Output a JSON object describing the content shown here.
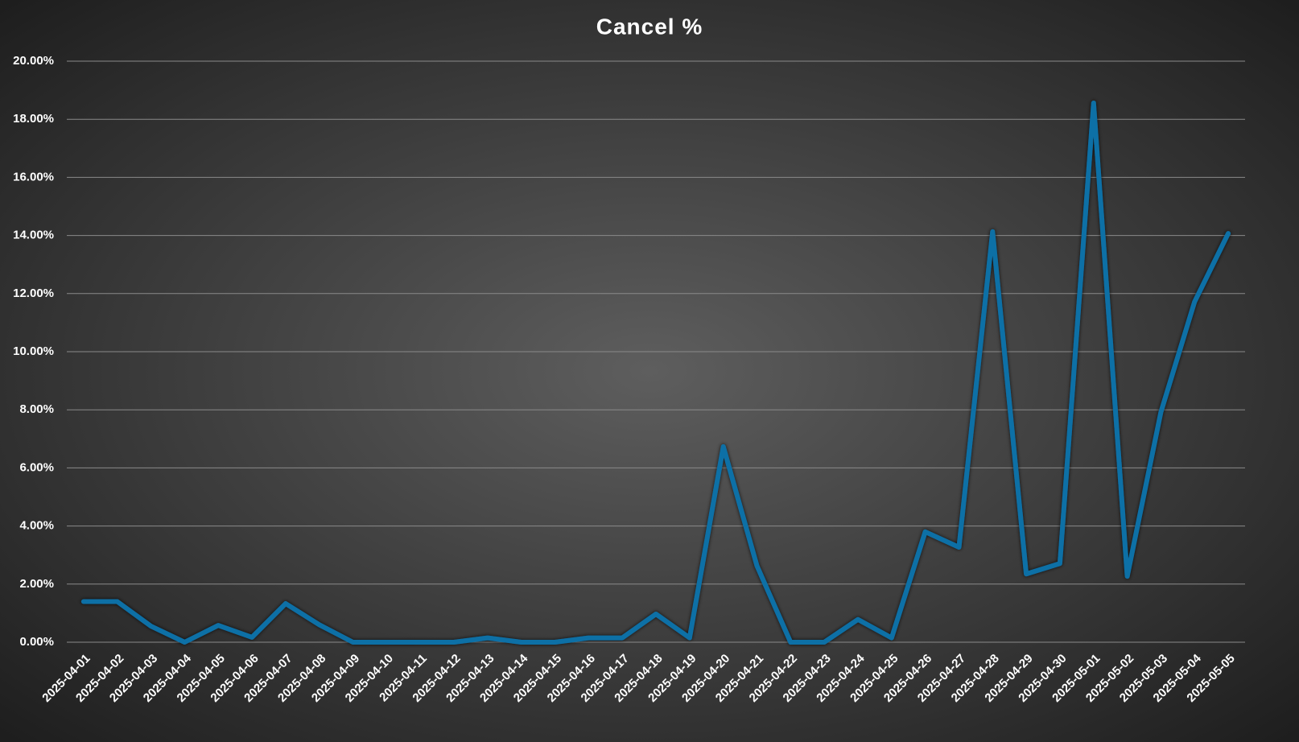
{
  "chart_data": {
    "type": "line",
    "title": "Cancel %",
    "categories": [
      "2025-04-01",
      "2025-04-02",
      "2025-04-03",
      "2025-04-04",
      "2025-04-05",
      "2025-04-06",
      "2025-04-07",
      "2025-04-08",
      "2025-04-09",
      "2025-04-10",
      "2025-04-11",
      "2025-04-12",
      "2025-04-13",
      "2025-04-14",
      "2025-04-15",
      "2025-04-16",
      "2025-04-17",
      "2025-04-18",
      "2025-04-19",
      "2025-04-20",
      "2025-04-21",
      "2025-04-22",
      "2025-04-23",
      "2025-04-24",
      "2025-04-25",
      "2025-04-26",
      "2025-04-27",
      "2025-04-28",
      "2025-04-29",
      "2025-04-30",
      "2025-05-01",
      "2025-05-02",
      "2025-05-03",
      "2025-05-04",
      "2025-05-05"
    ],
    "values": [
      1.4,
      1.4,
      0.55,
      0,
      0.58,
      0.17,
      1.33,
      0.6,
      0,
      0,
      0,
      0,
      0.15,
      0,
      0,
      0.15,
      0.15,
      0.97,
      0.15,
      6.73,
      2.63,
      0,
      0,
      0.78,
      0.15,
      3.8,
      3.27,
      14.13,
      2.35,
      2.71,
      18.56,
      2.27,
      7.92,
      11.72,
      14.07
    ],
    "color": "#0f6fa6",
    "ylim": [
      0,
      20
    ],
    "yticks": [
      {
        "value": 0,
        "label": "0.00%"
      },
      {
        "value": 2,
        "label": "2.00%"
      },
      {
        "value": 4,
        "label": "4.00%"
      },
      {
        "value": 6,
        "label": "6.00%"
      },
      {
        "value": 8,
        "label": "8.00%"
      },
      {
        "value": 10,
        "label": "10.00%"
      },
      {
        "value": 12,
        "label": "12.00%"
      },
      {
        "value": 14,
        "label": "14.00%"
      },
      {
        "value": 16,
        "label": "16.00%"
      },
      {
        "value": 18,
        "label": "18.00%"
      },
      {
        "value": 20,
        "label": "20.00%"
      }
    ],
    "grid": true
  }
}
